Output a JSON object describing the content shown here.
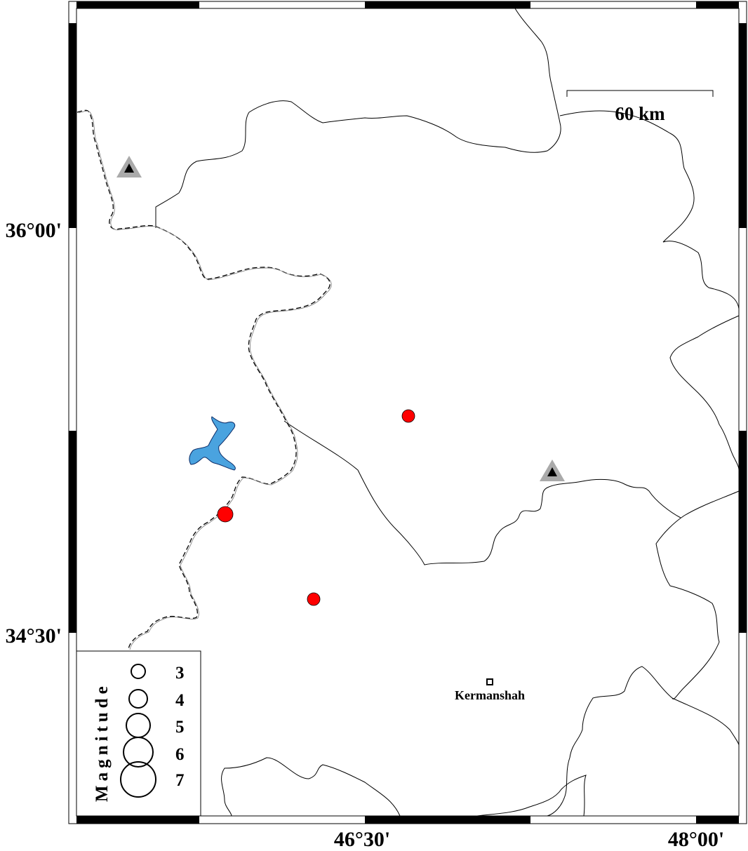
{
  "map": {
    "axis_labels": {
      "lat_upper": "36°00'",
      "lat_lower": "34°30'",
      "lon_left": "46°30'",
      "lon_right": "48°00'"
    },
    "scale_bar": {
      "label": "60 km"
    },
    "city": {
      "name": "Kermanshah"
    },
    "legend": {
      "title": "Magnitude",
      "entries": [
        "3",
        "4",
        "5",
        "6",
        "7"
      ]
    },
    "colors": {
      "event": "#ff0000",
      "lake": "#4aa3df",
      "station_outer": "#aaaaaa",
      "station_inner": "#000000"
    },
    "events": [
      {
        "id": "event-1",
        "magnitude_class": "small"
      },
      {
        "id": "event-2",
        "magnitude_class": "larger"
      },
      {
        "id": "event-3",
        "magnitude_class": "small"
      }
    ],
    "stations": [
      {
        "id": "station-nw"
      },
      {
        "id": "station-e"
      }
    ]
  }
}
